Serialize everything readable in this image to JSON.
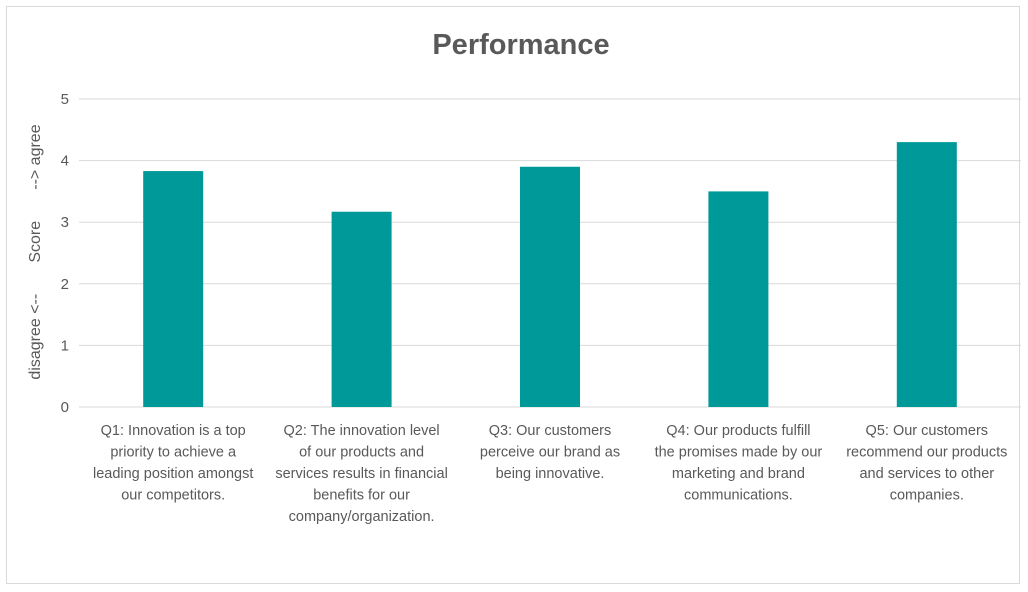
{
  "chart_data": {
    "type": "bar",
    "title": "Performance",
    "xlabel": "",
    "ylabel": "disagree <--       Score       --> agree",
    "ylim": [
      0,
      5
    ],
    "yticks": [
      0,
      1,
      2,
      3,
      4,
      5
    ],
    "grid": true,
    "legend": "none",
    "categories": [
      [
        "Q1: Innovation is a top",
        "priority to achieve a",
        "leading position amongst",
        "our competitors."
      ],
      [
        "Q2: The innovation level",
        "of our products and",
        "services results in financial",
        "benefits for our",
        "company/organization."
      ],
      [
        "Q3: Our customers",
        "perceive our brand as",
        "being innovative."
      ],
      [
        "Q4: Our products fulfill",
        "the promises made by our",
        "marketing and brand",
        "communications."
      ],
      [
        "Q5: Our customers",
        "recommend our products",
        "and services to other",
        "companies."
      ]
    ],
    "values": [
      3.83,
      3.17,
      3.9,
      3.5,
      4.3
    ],
    "colors": {
      "bar": "#009999",
      "grid": "#d9d9d9",
      "text": "#595959"
    }
  }
}
